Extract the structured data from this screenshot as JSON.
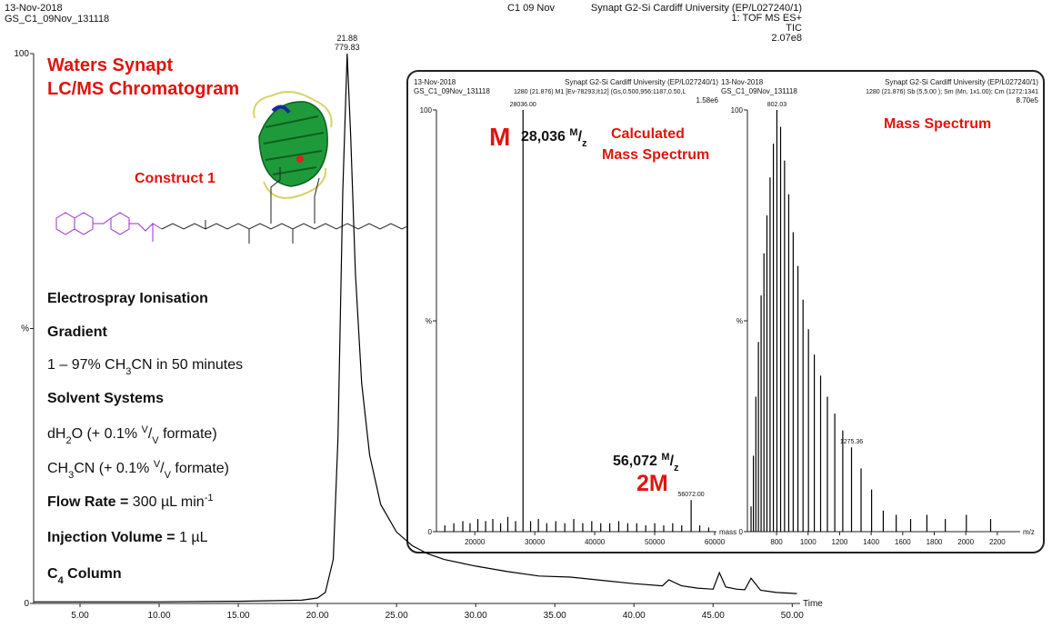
{
  "chart_data": [
    {
      "type": "line",
      "color": "#000000",
      "header": [
        "13-Nov-2018",
        "GS_C1_09Nov_131118",
        "C1 09 Nov",
        "Synapt G2-Si Cardiff University (EP/L027240/1)",
        "1: TOF MS ES+",
        "TIC",
        "2.07e8"
      ],
      "x_label": "Time",
      "peak": {
        "x": 21.88,
        "label": "21.88",
        "extra": "779.83"
      },
      "x": [
        2.1,
        5,
        10,
        15,
        19,
        20,
        20.5,
        21,
        21.3,
        21.6,
        21.88,
        22.1,
        22.4,
        22.8,
        23.3,
        24,
        25,
        26,
        27,
        28,
        30,
        32,
        34,
        36,
        38,
        40,
        41.8,
        42.2,
        43,
        44,
        45,
        45.4,
        45.8,
        46.5,
        47,
        47.4,
        48,
        49,
        50.3
      ],
      "values": [
        0.3,
        0.3,
        0.3,
        0.4,
        0.6,
        1,
        2,
        8,
        30,
        75,
        100,
        85,
        60,
        40,
        27,
        18,
        13,
        10.5,
        9,
        8,
        6.8,
        5.8,
        5,
        4.8,
        4.2,
        3.6,
        3.2,
        4.3,
        3.2,
        2.8,
        2.6,
        5.6,
        3,
        2.6,
        2.5,
        4.6,
        2.4,
        2,
        1.8
      ],
      "xlim": [
        2.07,
        50.5
      ],
      "ylim": [
        0,
        100
      ],
      "xticks": [
        {
          "value": 5,
          "label": "5.00"
        },
        {
          "value": 10,
          "label": "10.00"
        },
        {
          "value": 15,
          "label": "15.00"
        },
        {
          "value": 20,
          "label": "20.00"
        },
        {
          "value": 25,
          "label": "25.00"
        },
        {
          "value": 30,
          "label": "30.00"
        },
        {
          "value": 35,
          "label": "35.00"
        },
        {
          "value": 40,
          "label": "40.00"
        },
        {
          "value": 45,
          "label": "45.00"
        },
        {
          "value": 50,
          "label": "50.00"
        }
      ],
      "yticks": [
        0,
        {
          "value": 50,
          "label": "%"
        },
        100
      ]
    },
    {
      "type": "stem",
      "color": "#000000",
      "header": [
        "13-Nov-2018",
        "Synapt G2-Si Cardiff University (EP/L027240/1)",
        "GS_C1_09Nov_131118",
        "1280 (21.876) M1 [Ev-78293,It12] (Gs,0.500,956:1187,0.50,L",
        "1.58e6"
      ],
      "x_label": "mass",
      "x": [
        15000,
        16500,
        18000,
        19200,
        20500,
        21800,
        23000,
        24300,
        25500,
        26800,
        28036,
        29300,
        30600,
        32000,
        33500,
        35000,
        36500,
        38000,
        39500,
        41000,
        42500,
        44000,
        45500,
        47000,
        48500,
        50000,
        51500,
        53000,
        54500,
        56072,
        57500,
        59000
      ],
      "values": [
        1.5,
        2,
        2.5,
        2,
        3,
        2.5,
        3,
        2,
        3.5,
        2.5,
        100,
        2.5,
        3,
        2,
        2.5,
        2,
        3,
        2,
        2.5,
        2,
        2,
        2.5,
        2,
        2,
        1.5,
        2,
        1.5,
        2,
        1.5,
        7.5,
        1.5,
        1
      ],
      "peak_labels": [
        {
          "x": 28036,
          "label": "28036.00"
        },
        {
          "x": 56072,
          "label": "56072.00"
        }
      ],
      "xlim": [
        13600,
        60300
      ],
      "ylim": [
        0,
        100
      ],
      "xticks": [
        20000,
        30000,
        40000,
        50000,
        60000
      ],
      "yticks": [
        0,
        {
          "value": 50,
          "label": "%"
        },
        100
      ]
    },
    {
      "type": "stem",
      "color": "#000000",
      "header": [
        "13-Nov-2018",
        "Synapt G2-Si Cardiff University (EP/L027240/1)",
        "GS_C1_09Nov_131118",
        "1280 (21.876) Sb (5,5.00 ); Sm (Mn, 1x1.00); Cm (1272:1341",
        "8.70e5"
      ],
      "x_label": "m/z",
      "x": [
        638.2,
        653.0,
        668.5,
        684.8,
        701.9,
        719.9,
        738.8,
        758.7,
        779.8,
        802.03,
        825.6,
        850.6,
        877.1,
        905.4,
        935.5,
        967.8,
        1002.3,
        1039.4,
        1079.3,
        1122.4,
        1169.2,
        1219.9,
        1275.36,
        1336.0,
        1402.8,
        1476.6,
        1558.6,
        1650.2,
        1753.3,
        1870.1,
        2003.6,
        2157.6
      ],
      "values": [
        6,
        18,
        32,
        45,
        56,
        66,
        75,
        84,
        92,
        100,
        96,
        88,
        80,
        71,
        63,
        55,
        48,
        42,
        37,
        32,
        28,
        24,
        20,
        15,
        10,
        5,
        4,
        3,
        4,
        3,
        4,
        3
      ],
      "peak_labels": [
        {
          "x": 802.03,
          "label": "802.03"
        },
        {
          "x": 1275.36,
          "label": "1275.36"
        }
      ],
      "xlim": [
        615,
        2345
      ],
      "ylim": [
        0,
        100
      ],
      "xticks": [
        800,
        1000,
        1200,
        1400,
        1600,
        1800,
        2000,
        2200
      ],
      "yticks": [
        0,
        {
          "value": 50,
          "label": "%"
        },
        100
      ]
    }
  ],
  "annotations": {
    "title": [
      "Waters Synapt",
      "LC/MS Chromatogram"
    ],
    "construct": "Construct 1",
    "ionisation": "Electrospray Ionisation",
    "gradient_head": "Gradient",
    "gradient": [
      "1 – 97% CH",
      "3",
      "CN in 50 minutes"
    ],
    "solvent_head": "Solvent Systems",
    "solvent_a": [
      "dH",
      "2",
      "O (+ 0.1% ",
      "V",
      "/",
      "V",
      " formate)"
    ],
    "solvent_b": [
      "CH",
      "3",
      "CN (+ 0.1% ",
      "V",
      "/",
      "V",
      " formate)"
    ],
    "flow": [
      "Flow Rate = ",
      "300 µL min",
      "-1"
    ],
    "injection": [
      "Injection Volume = ",
      "1 µL"
    ],
    "column": [
      "C",
      "4",
      " Column"
    ],
    "m_label": "M",
    "m_mass": [
      "28,036 ",
      "M",
      "/",
      "z"
    ],
    "calculated": [
      "Calculated",
      "Mass Spectrum"
    ],
    "m2_mass": [
      "56,072 ",
      "M",
      "/",
      "z"
    ],
    "m2_label": "2M",
    "mass_spectrum": "Mass Spectrum"
  }
}
